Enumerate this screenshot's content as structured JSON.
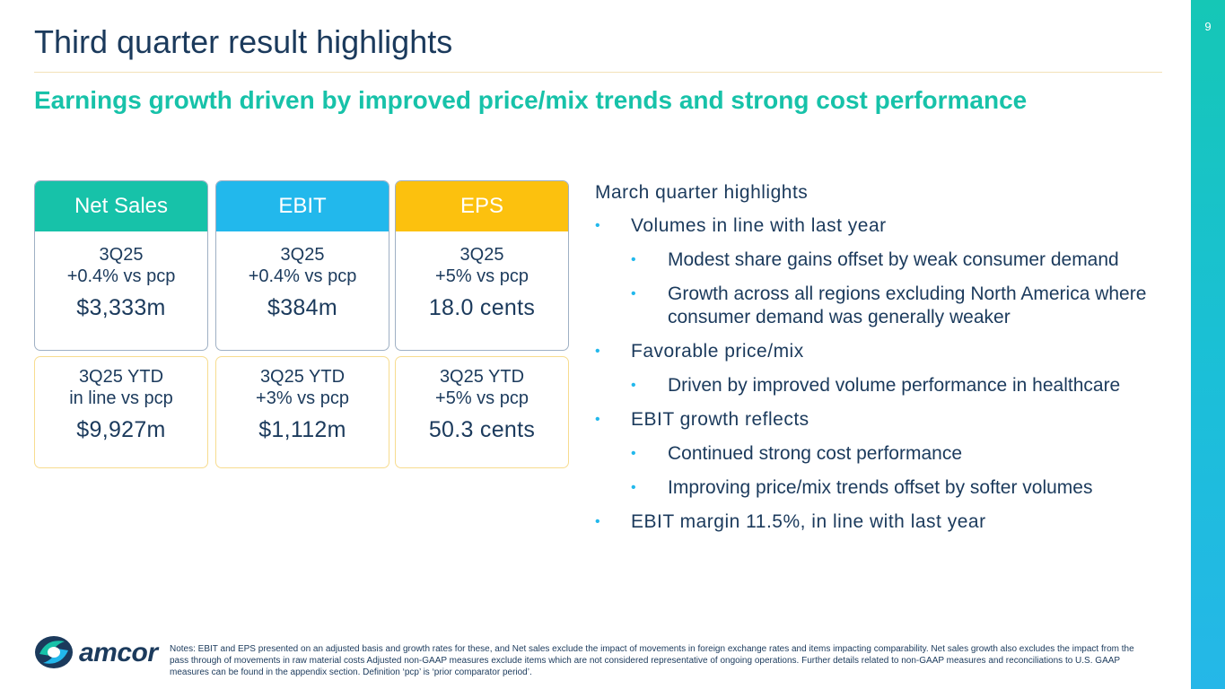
{
  "page": {
    "number": "9",
    "title": "Third quarter result highlights",
    "subtitle": "Earnings growth driven by improved price/mix trends and strong cost performance"
  },
  "cards": {
    "net_sales": {
      "header": "Net Sales",
      "quarter": {
        "period": "3Q25",
        "change": "+0.4% vs pcp",
        "value": "$3,333m"
      },
      "ytd": {
        "period": "3Q25 YTD",
        "change": "in line vs pcp",
        "value": "$9,927m"
      }
    },
    "ebit": {
      "header": "EBIT",
      "quarter": {
        "period": "3Q25",
        "change": "+0.4% vs pcp",
        "value": "$384m"
      },
      "ytd": {
        "period": "3Q25 YTD",
        "change": "+3% vs pcp",
        "value": "$1,112m"
      }
    },
    "eps": {
      "header": "EPS",
      "quarter": {
        "period": "3Q25",
        "change": "+5% vs pcp",
        "value": "18.0 cents"
      },
      "ytd": {
        "period": "3Q25 YTD",
        "change": "+5% vs pcp",
        "value": "50.3 cents"
      }
    }
  },
  "highlights": {
    "heading": "March quarter highlights",
    "bullet_symbol": "•",
    "items": [
      "Volumes in line with last year",
      "Modest share gains offset by weak consumer demand",
      "Growth across all regions excluding North America where consumer demand was generally weaker",
      "Favorable price/mix",
      "Driven by improved volume performance in healthcare",
      "EBIT growth reflects",
      "Continued strong cost performance",
      "Improving price/mix trends offset by softer volumes",
      "EBIT margin 11.5%, in line with last year"
    ]
  },
  "footer": {
    "logo_text": "amcor",
    "notes": "Notes: EBIT and EPS presented on an adjusted basis and growth rates for these, and Net sales exclude the impact of movements in foreign exchange rates and items impacting comparability.  Net sales growth also excludes the impact from the pass through of movements in raw material costs Adjusted non-GAAP measures exclude items which are not considered representative of ongoing operations.   Further details related to non-GAAP measures and reconciliations to U.S. GAAP measures can be found in the appendix section. Definition ‘pcp’ is ‘prior comparator period’."
  },
  "colors": {
    "teal": "#17c2a9",
    "blue": "#22b8ec",
    "yellow": "#fcc10e",
    "navy": "#1b3a5c"
  }
}
